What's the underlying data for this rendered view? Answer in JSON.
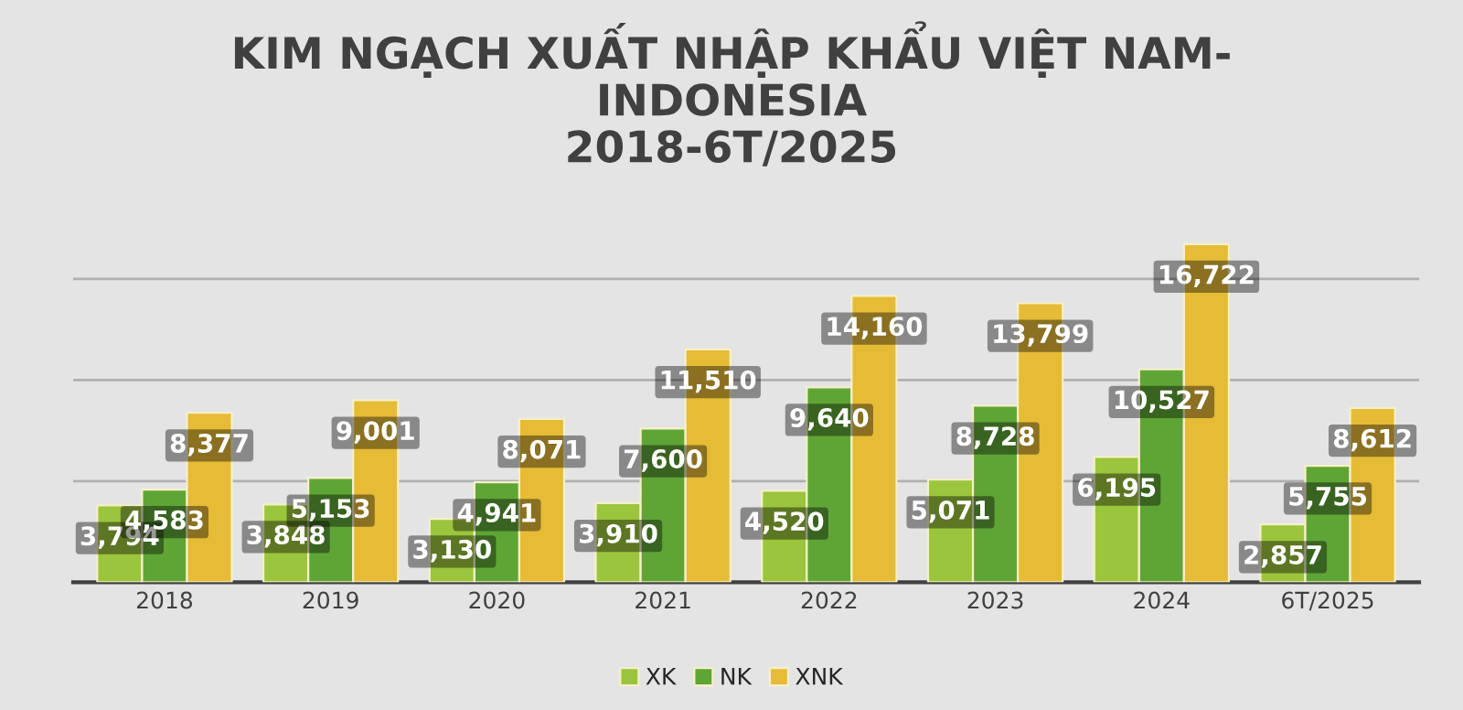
{
  "chart_data": {
    "type": "bar",
    "title": "KIM NGẠCH XUẤT NHẬP KHẨU VIỆT NAM-\nINDONESIA\n2018-6T/2025",
    "categories": [
      "2018",
      "2019",
      "2020",
      "2021",
      "2022",
      "2023",
      "2024",
      "6T/2025"
    ],
    "series": [
      {
        "name": "XK",
        "color": "#9bc53d",
        "values": [
          3794,
          3848,
          3130,
          3910,
          4520,
          5071,
          6195,
          2857
        ],
        "value_labels": [
          "3,794",
          "3,848",
          "3,130",
          "3,910",
          "4,520",
          "5,071",
          "6,195",
          "2,857"
        ]
      },
      {
        "name": "NK",
        "color": "#5fa536",
        "values": [
          4583,
          5153,
          4941,
          7600,
          9640,
          8728,
          10527,
          5755
        ],
        "value_labels": [
          "4,583",
          "5,153",
          "4,941",
          "7,600",
          "9,640",
          "8,728",
          "10,527",
          "5,755"
        ]
      },
      {
        "name": "XNK",
        "color": "#e6bb36",
        "values": [
          8377,
          9001,
          8071,
          11510,
          14160,
          13799,
          16722,
          8612
        ],
        "value_labels": [
          "8,377",
          "9,001",
          "8,071",
          "11,510",
          "14,160",
          "13,799",
          "16,722",
          "8,612"
        ]
      }
    ],
    "grid": "y",
    "legend": "bottom",
    "tick_labels": "x"
  }
}
